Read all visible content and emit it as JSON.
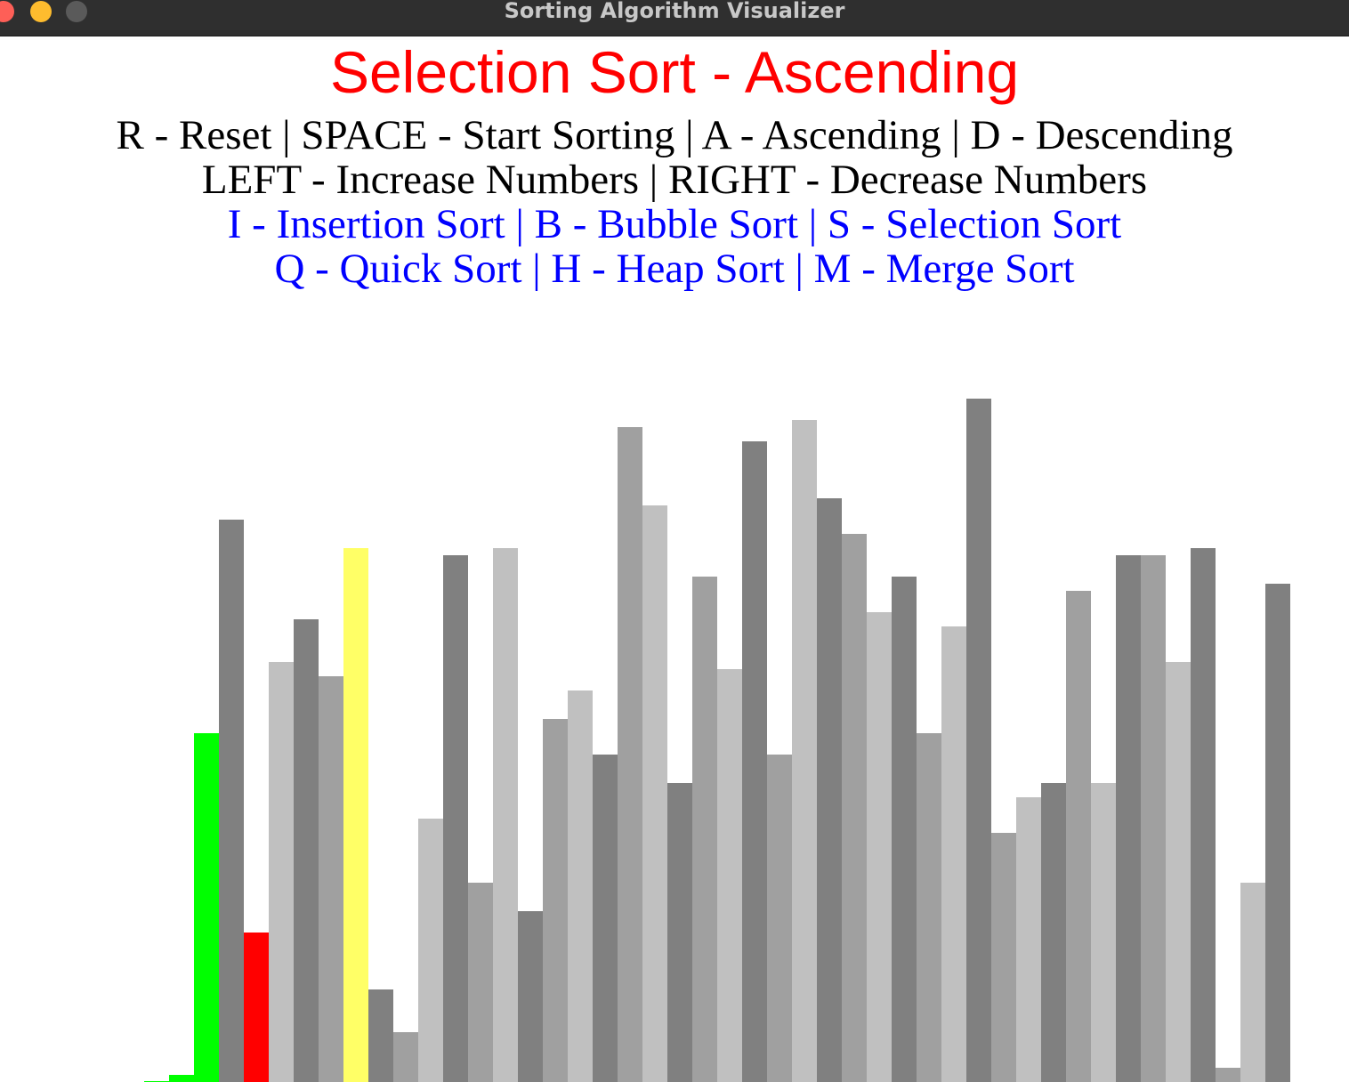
{
  "window": {
    "title": "Sorting Algorithm Visualizer"
  },
  "header": {
    "title": "Selection Sort - Ascending",
    "title_color": "#ff0000"
  },
  "help": {
    "line1": "R - Reset | SPACE - Start Sorting | A - Ascending | D - Descending",
    "line2": "LEFT - Increase Numbers | RIGHT - Decrease Numbers",
    "line3": "I - Insertion Sort | B - Bubble Sort | S - Selection Sort",
    "line4": "Q - Quick Sort | H - Heap Sort | M - Merge Sort",
    "control_color": "#000000",
    "algorithm_color": "#0000ff"
  },
  "colors": {
    "bar_shades": [
      "#808080",
      "#a0a0a0",
      "#c0c0c0"
    ],
    "sorted": "#00ff00",
    "current_min": "#ff0000",
    "compare": "#ffff66"
  },
  "chart_data": {
    "type": "bar",
    "values": [
      0,
      8,
      392,
      632,
      168,
      472,
      520,
      456,
      600,
      104,
      56,
      296,
      592,
      224,
      600,
      192,
      408,
      440,
      368,
      736,
      648,
      336,
      568,
      464,
      720,
      368,
      744,
      656,
      616,
      528,
      568,
      392,
      512,
      768,
      280,
      320,
      336,
      552,
      336,
      592,
      592,
      472,
      600,
      16,
      224,
      560
    ],
    "states": [
      "sorted",
      "sorted",
      "sorted",
      "normal",
      "current_min",
      "normal",
      "normal",
      "normal",
      "compare",
      "normal",
      "normal",
      "normal",
      "normal",
      "normal",
      "normal",
      "normal",
      "normal",
      "normal",
      "normal",
      "normal",
      "normal",
      "normal",
      "normal",
      "normal",
      "normal",
      "normal",
      "normal",
      "normal",
      "normal",
      "normal",
      "normal",
      "normal",
      "normal",
      "normal",
      "normal",
      "normal",
      "normal",
      "normal",
      "normal",
      "normal",
      "normal",
      "normal",
      "normal",
      "normal",
      "normal",
      "normal"
    ]
  }
}
